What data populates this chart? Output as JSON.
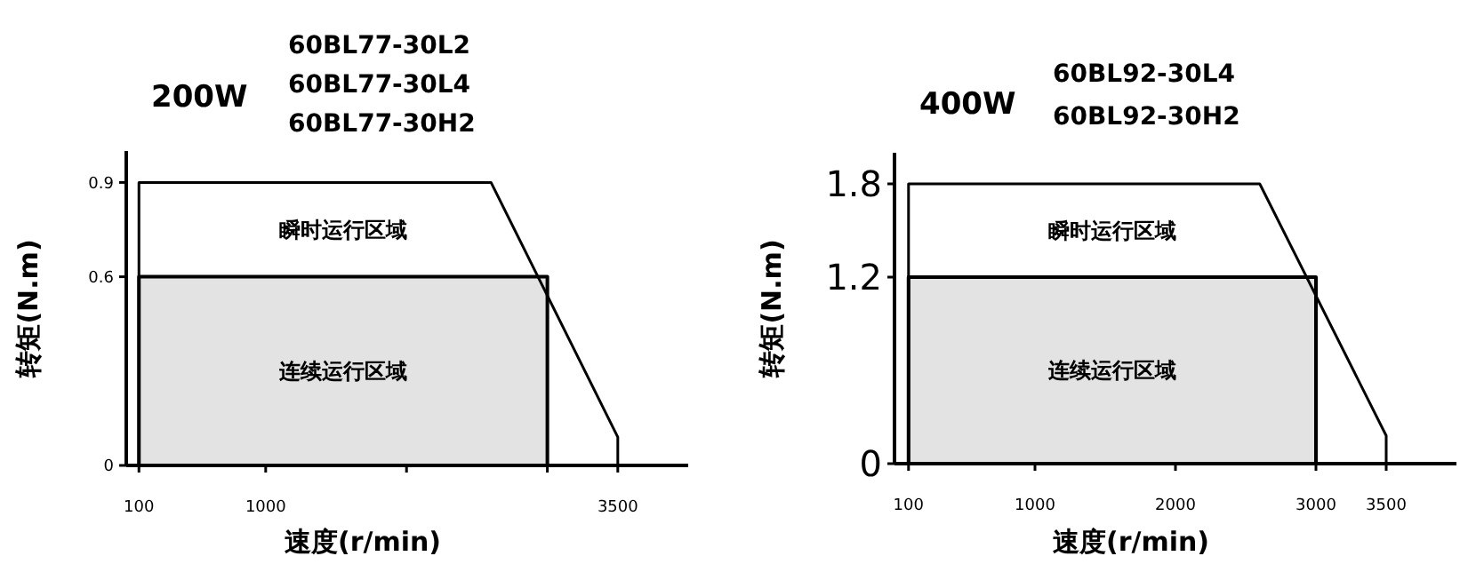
{
  "chart_data": [
    {
      "type": "line",
      "title": "200W",
      "subtitle": "60BL77-30L2\n60BL77-30L4\n60BL77-30H2",
      "xlabel": "速度(r/min)",
      "ylabel": "转矩(N.m)",
      "xlim": [
        10,
        4000
      ],
      "ylim": [
        0,
        1
      ],
      "xticks": [
        100,
        1000,
        {
          "value": 2000,
          "label": null
        },
        {
          "value": 3000,
          "label": null
        },
        3500
      ],
      "yticks": [
        0,
        0.6,
        0.9
      ],
      "grid": false,
      "series": [
        {
          "name": "瞬时运行区域",
          "color": "#000000",
          "x": [
            100,
            100,
            2600,
            3500,
            3500
          ],
          "values": [
            0,
            0.9,
            0.9,
            0.09,
            0
          ]
        },
        {
          "name": "连续运行区域",
          "type": "area",
          "color": "#e3e3e3",
          "x": [
            100,
            100,
            3000,
            3000
          ],
          "values": [
            0,
            0.6,
            0.6,
            0
          ]
        }
      ]
    },
    {
      "type": "line",
      "title": "400W",
      "subtitle": "60BL92-30L4\n60BL92-30H2",
      "xlabel": "速度(r/min)",
      "ylabel": "转矩(N.m)",
      "xlim": [
        0,
        4000
      ],
      "ylim": [
        0,
        2
      ],
      "xticks": [
        100,
        1000,
        2000,
        3000,
        3500
      ],
      "yticks": [
        0,
        1.2,
        1.8
      ],
      "grid": false,
      "series": [
        {
          "name": "瞬时运行区域",
          "color": "#000000",
          "x": [
            100,
            100,
            2600,
            3500,
            3500
          ],
          "values": [
            0,
            1.8,
            1.8,
            0.18,
            0
          ]
        },
        {
          "name": "连续运行区域",
          "type": "area",
          "color": "#e3e3e3",
          "x": [
            100,
            100,
            3000,
            3000
          ],
          "values": [
            0,
            1.2,
            1.2,
            0
          ]
        }
      ]
    }
  ]
}
